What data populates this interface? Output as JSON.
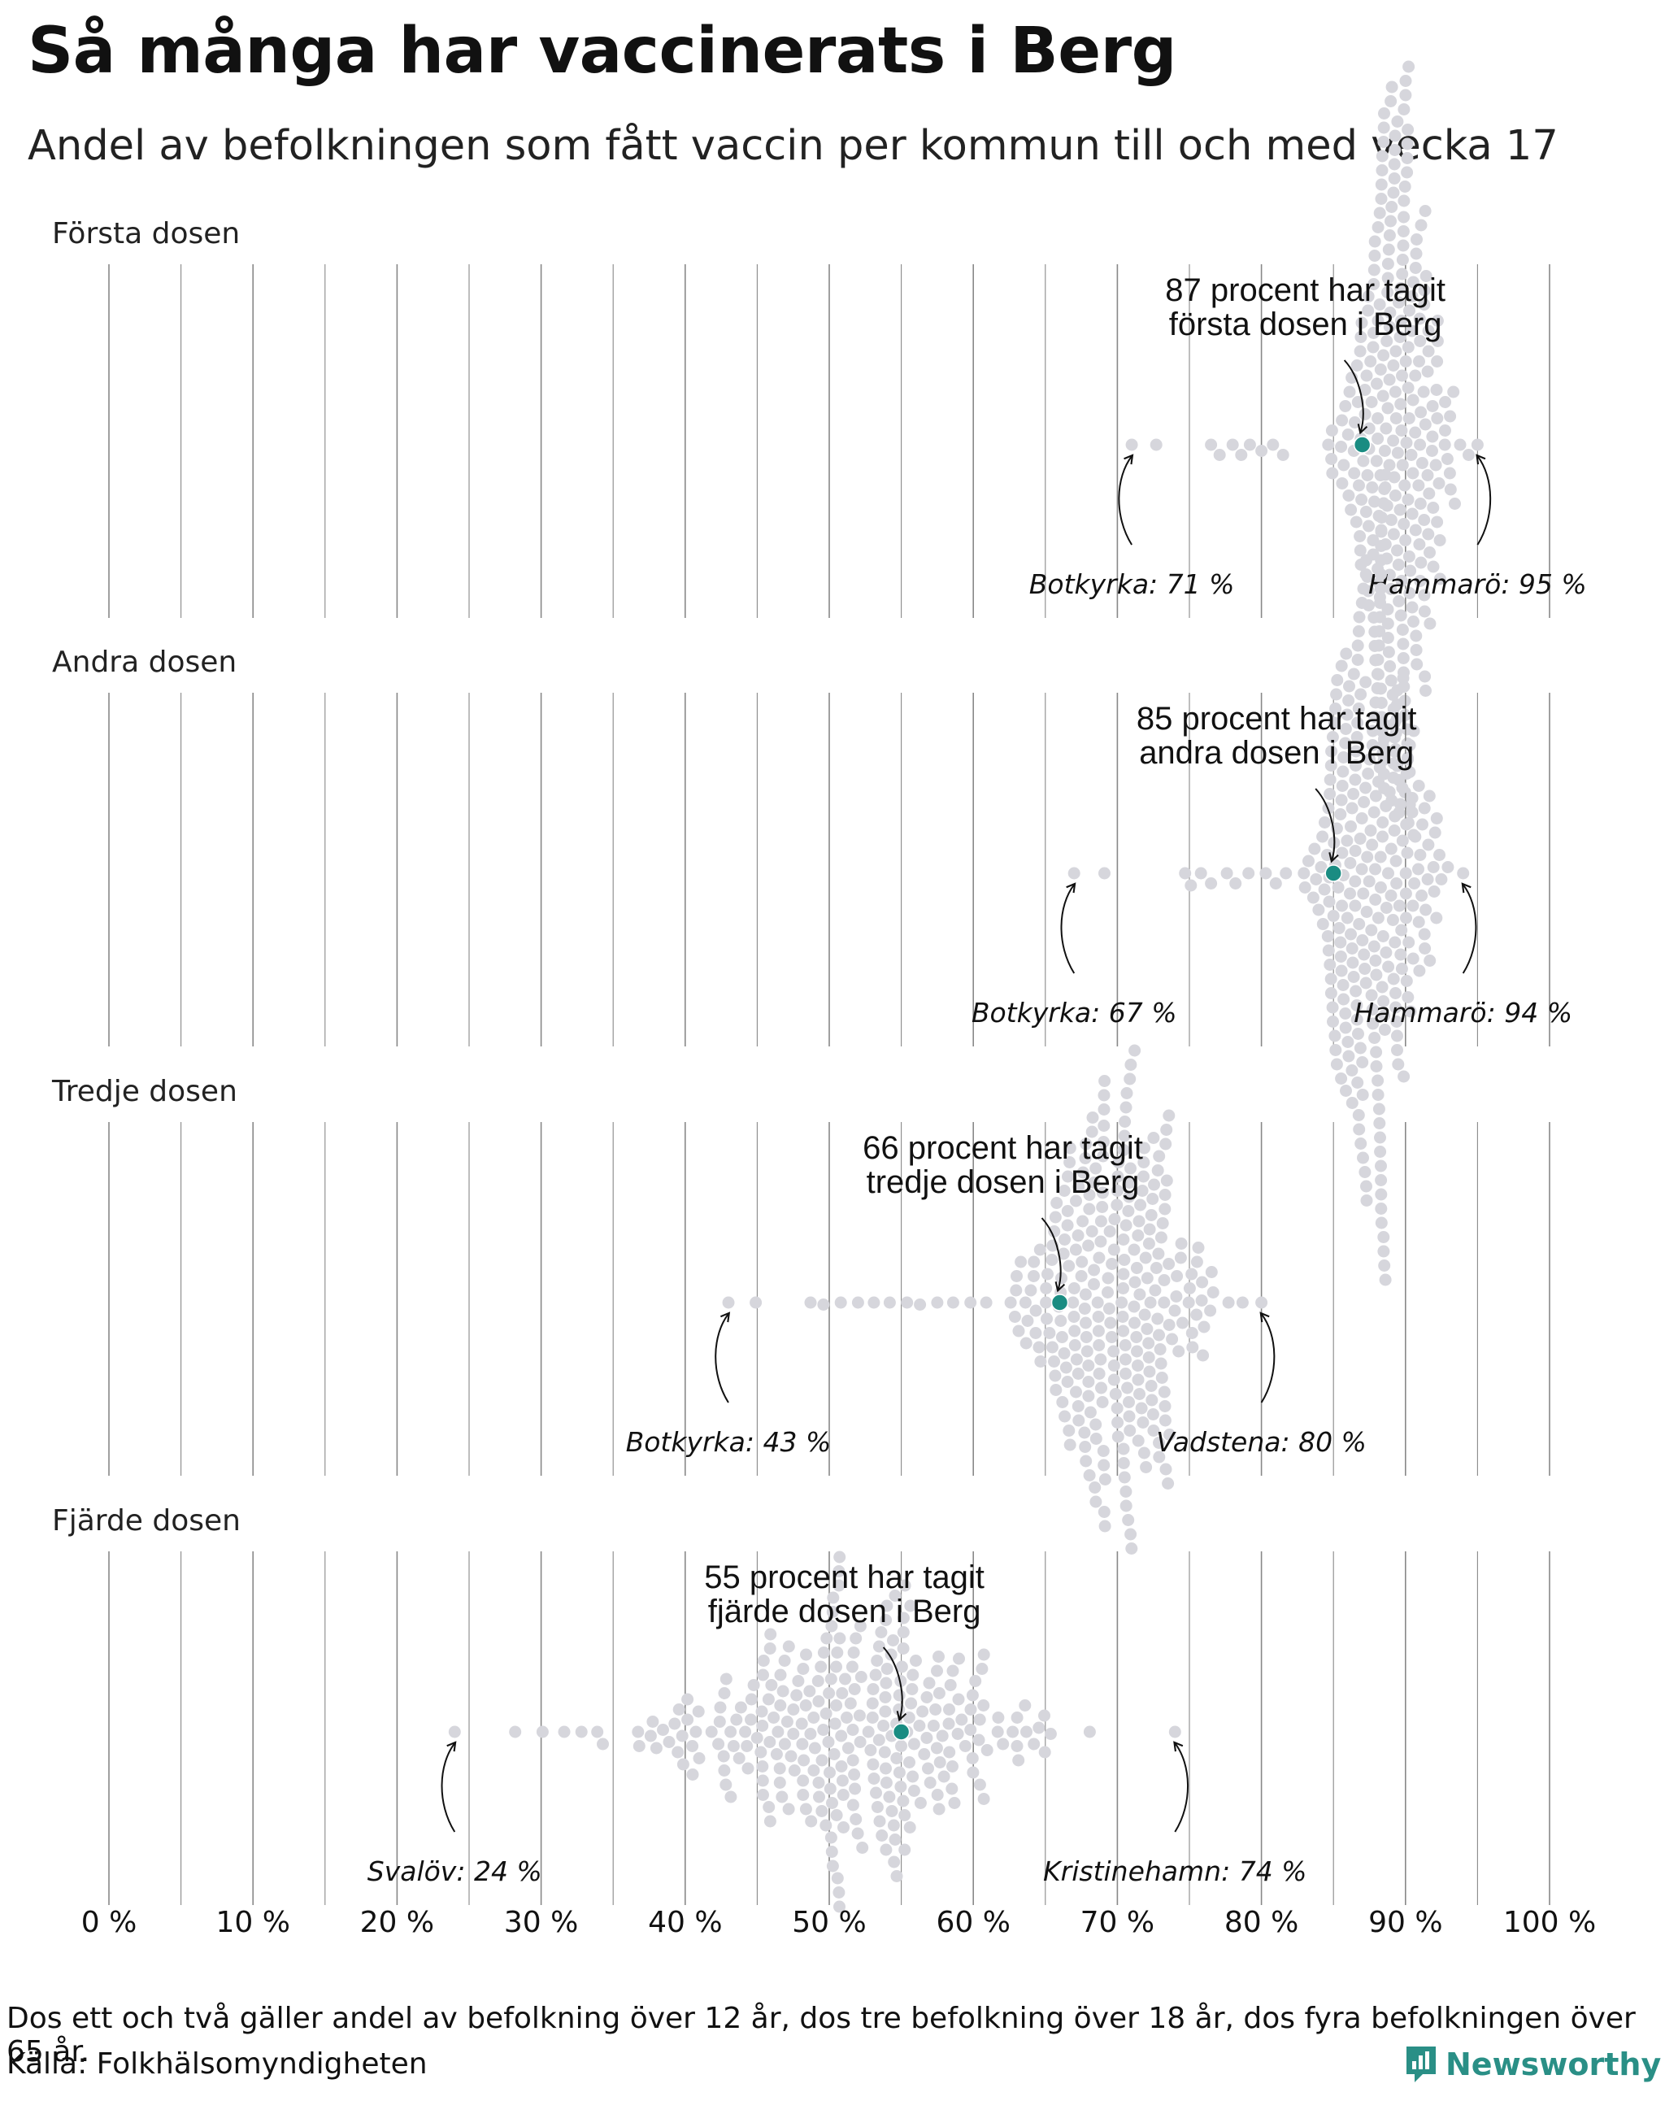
{
  "title": "Så många har vaccinerats i Berg",
  "subtitle": "Andel av befolkningen som fått vaccin per kommun till och med vecka 17",
  "footnote": "Dos ett och två gäller andel av befolkning över 12 år, dos tre befolkning över 18 år, dos fyra befolkningen över 65 år.",
  "source": "Källa: Folkhälsomyndigheten",
  "brand": "Newsworthy",
  "colors": {
    "highlight": "#1a8c82",
    "dots": "#d6d6dc",
    "grid": "#888888",
    "text": "#111111",
    "brand": "#2a8f86"
  },
  "chart_data": {
    "type": "scatter",
    "subtype": "beeswarm",
    "x_axis": {
      "range": [
        0,
        100
      ],
      "ticks": [
        0,
        10,
        20,
        30,
        40,
        50,
        60,
        70,
        80,
        90,
        100
      ],
      "tick_labels": [
        "0 %",
        "10 %",
        "20 %",
        "30 %",
        "40 %",
        "50 %",
        "60 %",
        "70 %",
        "80 %",
        "90 %",
        "100 %"
      ],
      "minor_gridlines": [
        5,
        15,
        25,
        35,
        45,
        55,
        65,
        75,
        85,
        95
      ]
    },
    "municipality_count": 290,
    "highlight_municipality": "Berg",
    "panels": [
      {
        "label": "Första dosen",
        "highlight_value": 87,
        "callout": [
          "87 procent har tagit",
          "första dosen i Berg"
        ],
        "min": {
          "name": "Botkyrka",
          "value": 71,
          "label": "Botkyrka: 71 %"
        },
        "max": {
          "name": "Hammarö",
          "value": 95,
          "label": "Hammarö: 95 %"
        },
        "distribution": {
          "mean": 89.5,
          "sd": 2.0,
          "low_tail": [
            71,
            72.7,
            76.5,
            77.1,
            78,
            78.6,
            79.2,
            80,
            80.8,
            81.5
          ]
        }
      },
      {
        "label": "Andra dosen",
        "highlight_value": 85,
        "callout": [
          "85 procent har tagit",
          "andra dosen i Berg"
        ],
        "min": {
          "name": "Botkyrka",
          "value": 67,
          "label": "Botkyrka: 67 %"
        },
        "max": {
          "name": "Hammarö",
          "value": 94,
          "label": "Hammarö: 94 %"
        },
        "distribution": {
          "mean": 87.5,
          "sd": 2.2,
          "low_tail": [
            67,
            69.1,
            74.7,
            75.1,
            75.8,
            76.5,
            77.6,
            78.2,
            79.1,
            80.3,
            81,
            81.7
          ]
        }
      },
      {
        "label": "Tredje dosen",
        "highlight_value": 66,
        "callout": [
          "66 procent har tagit",
          "tredje dosen i Berg"
        ],
        "min": {
          "name": "Botkyrka",
          "value": 43,
          "label": "Botkyrka: 43 %"
        },
        "max": {
          "name": "Vadstena",
          "value": 80,
          "label": "Vadstena: 80 %"
        },
        "distribution": {
          "mean": 69.5,
          "sd": 3.2,
          "low_tail": [
            43,
            44.9,
            48.7,
            49.6,
            50.8,
            52,
            53.1,
            54.2,
            55.4,
            56.3,
            57.5,
            58.6,
            59.8,
            60.9
          ]
        }
      },
      {
        "label": "Fjärde dosen",
        "highlight_value": 55,
        "callout": [
          "55 procent har tagit",
          "fjärde dosen i Berg"
        ],
        "min": {
          "name": "Svalöv",
          "value": 24,
          "label": "Svalöv: 24 %"
        },
        "max": {
          "name": "Kristinehamn",
          "value": 74,
          "label": "Kristinehamn: 74 %"
        },
        "distribution": {
          "mean": 51,
          "sd": 7.0,
          "low_tail": [
            24,
            28.2,
            30.1,
            31.6,
            32.8,
            33.9
          ]
        }
      }
    ]
  }
}
